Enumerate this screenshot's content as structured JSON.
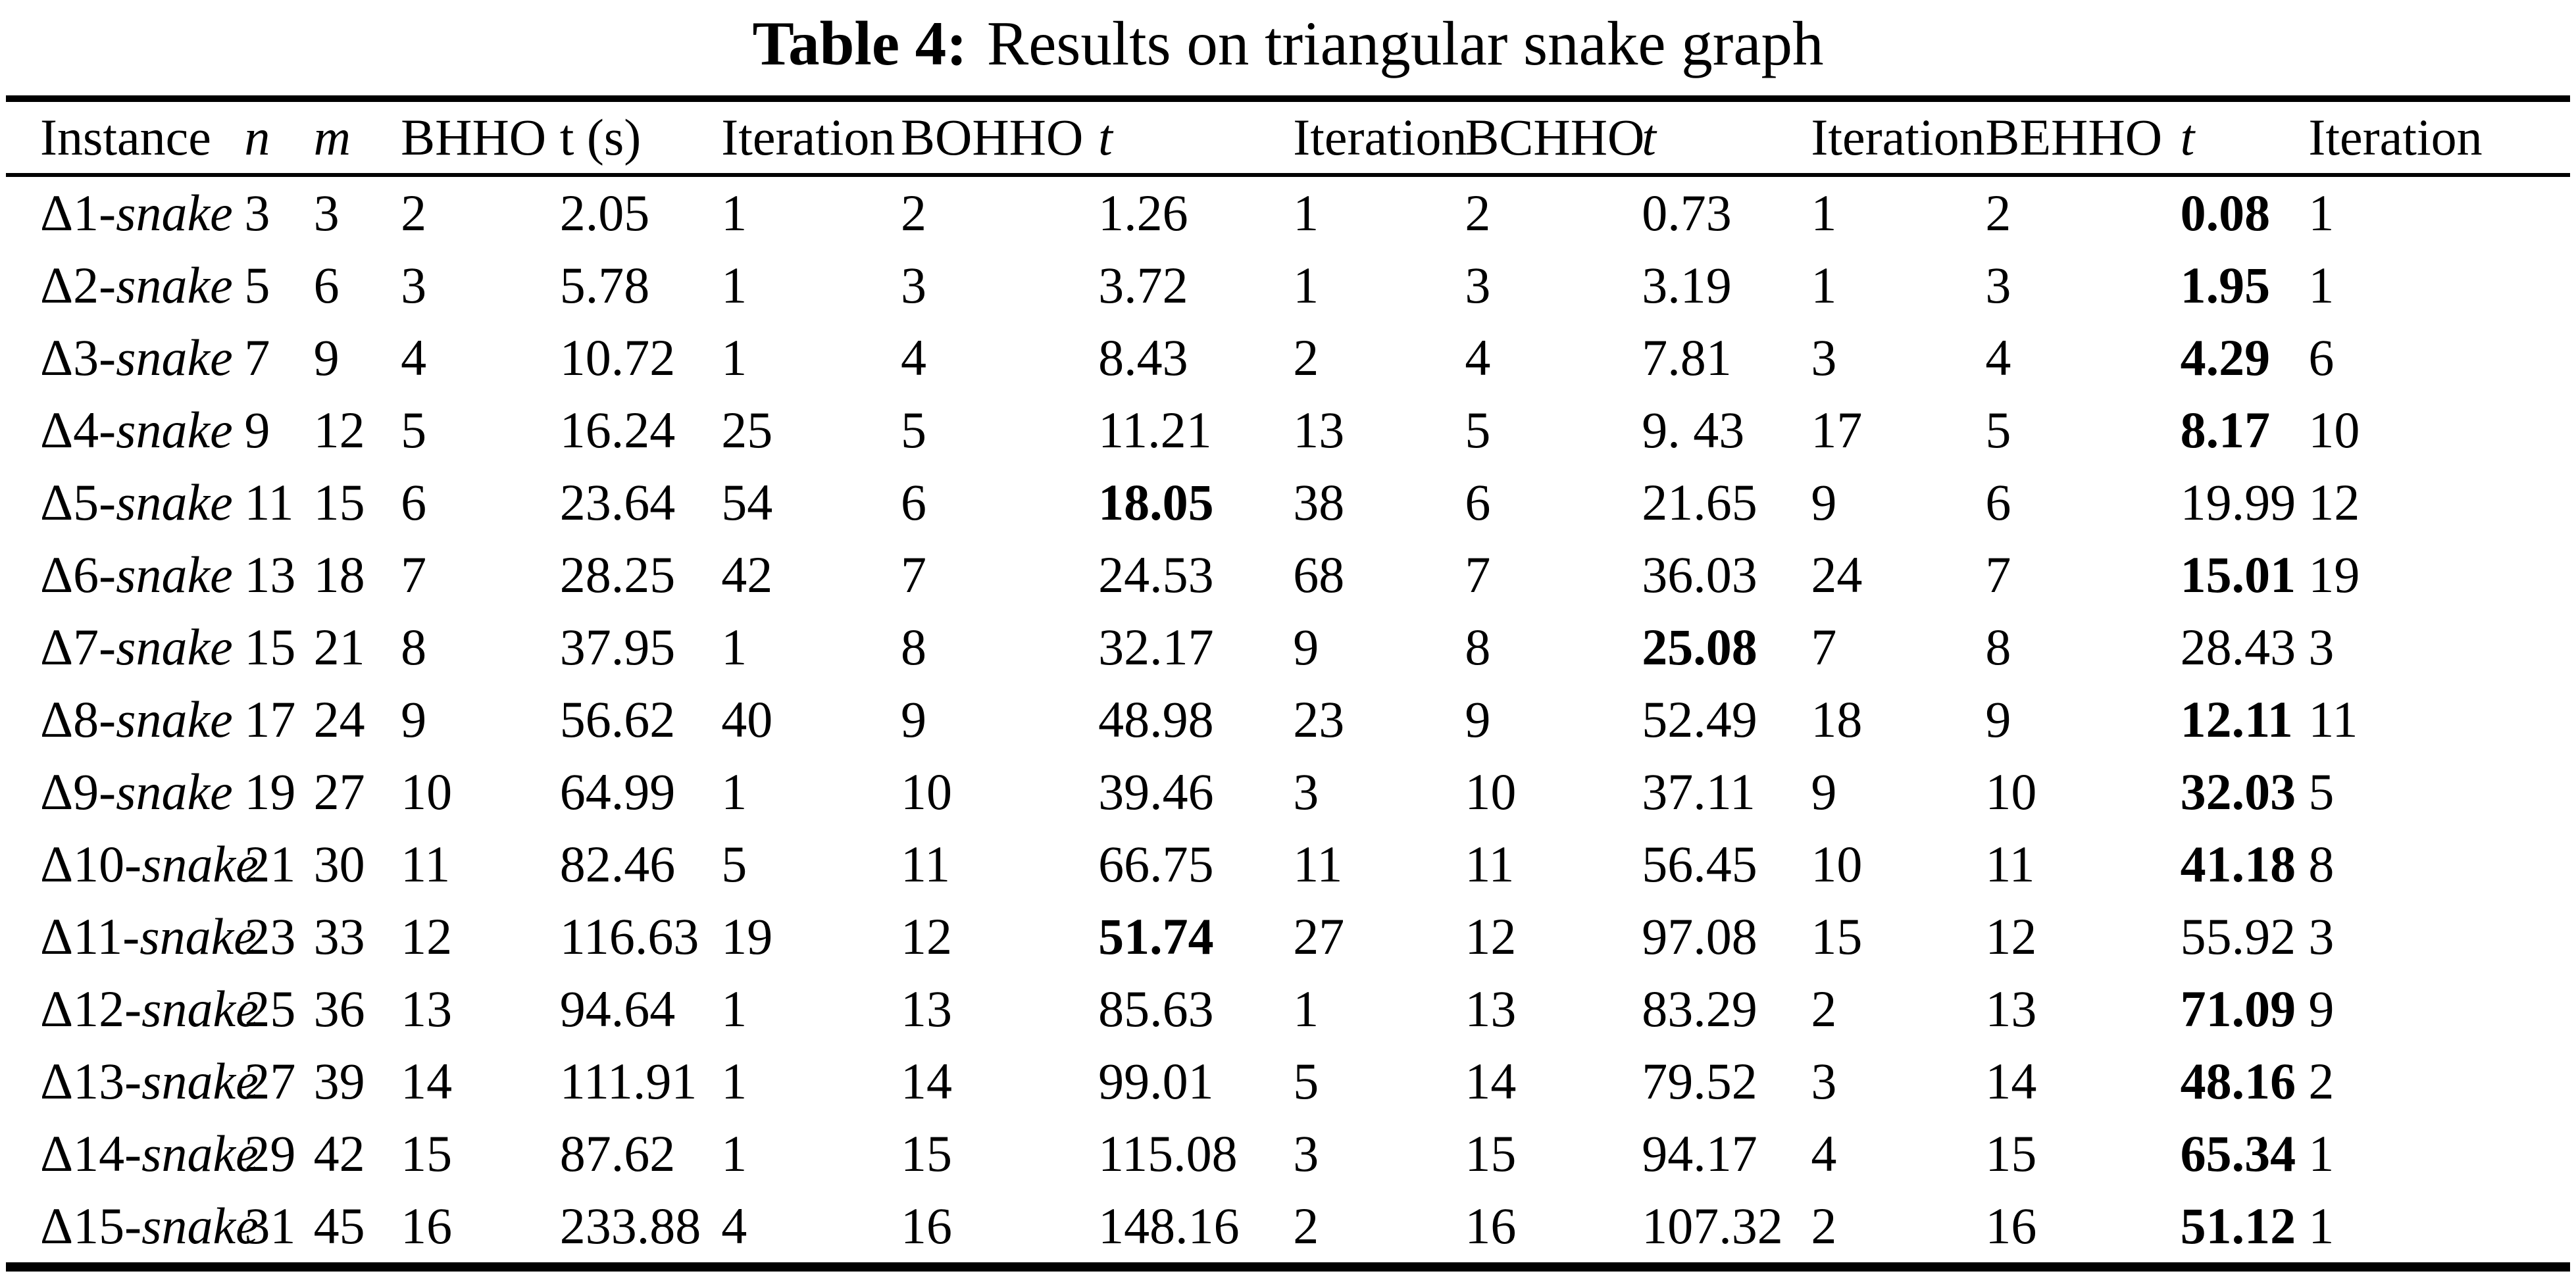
{
  "page": {
    "background": "#ffffff",
    "ink": "#000000"
  },
  "title": {
    "label": "Table 4:",
    "text": "Results on triangular snake graph"
  },
  "table": {
    "columns": [
      {
        "key": "instance",
        "label": "Instance",
        "italic": false
      },
      {
        "key": "n",
        "label": "n",
        "italic": true
      },
      {
        "key": "m",
        "label": "m",
        "italic": true
      },
      {
        "key": "bhho",
        "label": "BHHO",
        "italic": false
      },
      {
        "key": "t_s",
        "label": "t (s)",
        "italic": false
      },
      {
        "key": "iter_bhho",
        "label": "Iteration",
        "italic": false
      },
      {
        "key": "bohho",
        "label": "BOHHO",
        "italic": false
      },
      {
        "key": "t_bohho",
        "label": "t",
        "italic": true
      },
      {
        "key": "iter_bohho",
        "label": "Iteration",
        "italic": false
      },
      {
        "key": "bchho",
        "label": "BCHHO",
        "italic": false
      },
      {
        "key": "t_bchho",
        "label": "t",
        "italic": true
      },
      {
        "key": "iter_bchho",
        "label": "Iteration",
        "italic": false
      },
      {
        "key": "behho",
        "label": "BEHHO",
        "italic": false
      },
      {
        "key": "t_behho",
        "label": "t",
        "italic": true
      },
      {
        "key": "iter_behho",
        "label": "Iteration",
        "italic": false
      }
    ],
    "rows": [
      {
        "prefix": "Δ1-",
        "word": "snake",
        "values": [
          "3",
          "3",
          "2",
          "2.05",
          "1",
          "2",
          "1.26",
          "1",
          "2",
          "0.73",
          "1",
          "2",
          "0.08",
          "1"
        ],
        "bold": 12
      },
      {
        "prefix": "Δ2-",
        "word": "snake",
        "values": [
          "5",
          "6",
          "3",
          "5.78",
          "1",
          "3",
          "3.72",
          "1",
          "3",
          "3.19",
          "1",
          "3",
          "1.95",
          "1"
        ],
        "bold": 12
      },
      {
        "prefix": "Δ3-",
        "word": "snake",
        "values": [
          "7",
          "9",
          "4",
          "10.72",
          "1",
          "4",
          "8.43",
          "2",
          "4",
          "7.81",
          "3",
          "4",
          "4.29",
          "6"
        ],
        "bold": 12
      },
      {
        "prefix": "Δ4-",
        "word": "snake",
        "values": [
          "9",
          "12",
          "5",
          "16.24",
          "25",
          "5",
          "11.21",
          "13",
          "5",
          "9. 43",
          "17",
          "5",
          "8.17",
          "10"
        ],
        "bold": 12
      },
      {
        "prefix": "Δ5-",
        "word": "snake",
        "values": [
          "11",
          "15",
          "6",
          "23.64",
          "54",
          "6",
          "18.05",
          "38",
          "6",
          "21.65",
          "9",
          "6",
          "19.99",
          "12"
        ],
        "bold": 6
      },
      {
        "prefix": "Δ6-",
        "word": "snake",
        "values": [
          "13",
          "18",
          "7",
          "28.25",
          "42",
          "7",
          "24.53",
          "68",
          "7",
          "36.03",
          "24",
          "7",
          "15.01",
          "19"
        ],
        "bold": 12
      },
      {
        "prefix": "Δ7-",
        "word": "snake",
        "values": [
          "15",
          "21",
          "8",
          "37.95",
          "1",
          "8",
          "32.17",
          "9",
          "8",
          "25.08",
          "7",
          "8",
          "28.43",
          "3"
        ],
        "bold": 9
      },
      {
        "prefix": "Δ8-",
        "word": "snake",
        "values": [
          "17",
          "24",
          "9",
          "56.62",
          "40",
          "9",
          "48.98",
          "23",
          "9",
          "52.49",
          "18",
          "9",
          "12.11",
          "11"
        ],
        "bold": 12
      },
      {
        "prefix": "Δ9-",
        "word": "snake",
        "values": [
          "19",
          "27",
          "10",
          "64.99",
          "1",
          "10",
          "39.46",
          "3",
          "10",
          "37.11",
          "9",
          "10",
          "32.03",
          "5"
        ],
        "bold": 12
      },
      {
        "prefix": "Δ10-",
        "word": "snake",
        "values": [
          "21",
          "30",
          "11",
          "82.46",
          "5",
          "11",
          "66.75",
          "11",
          "11",
          "56.45",
          "10",
          "11",
          "41.18",
          "8"
        ],
        "bold": 12
      },
      {
        "prefix": "Δ11-",
        "word": "snake",
        "values": [
          "23",
          "33",
          "12",
          "116.63",
          "19",
          "12",
          "51.74",
          "27",
          "12",
          "97.08",
          "15",
          "12",
          "55.92",
          "3"
        ],
        "bold": 6
      },
      {
        "prefix": "Δ12-",
        "word": "snake",
        "values": [
          "25",
          "36",
          "13",
          "94.64",
          "1",
          "13",
          "85.63",
          "1",
          "13",
          "83.29",
          "2",
          "13",
          "71.09",
          "9"
        ],
        "bold": 12
      },
      {
        "prefix": "Δ13-",
        "word": "snake",
        "values": [
          "27",
          "39",
          "14",
          "111.91",
          "1",
          "14",
          "99.01",
          "5",
          "14",
          "79.52",
          "3",
          "14",
          "48.16",
          "2"
        ],
        "bold": 12
      },
      {
        "prefix": "Δ14-",
        "word": "snake",
        "values": [
          "29",
          "42",
          "15",
          "87.62",
          "1",
          "15",
          "115.08",
          "3",
          "15",
          "94.17",
          "4",
          "15",
          "65.34",
          "1"
        ],
        "bold": 12
      },
      {
        "prefix": "Δ15-",
        "word": "snake",
        "values": [
          "31",
          "45",
          "16",
          "233.88",
          "4",
          "16",
          "148.16",
          "2",
          "16",
          "107.32",
          "2",
          "16",
          "51.12",
          "1"
        ],
        "bold": 12
      }
    ]
  }
}
